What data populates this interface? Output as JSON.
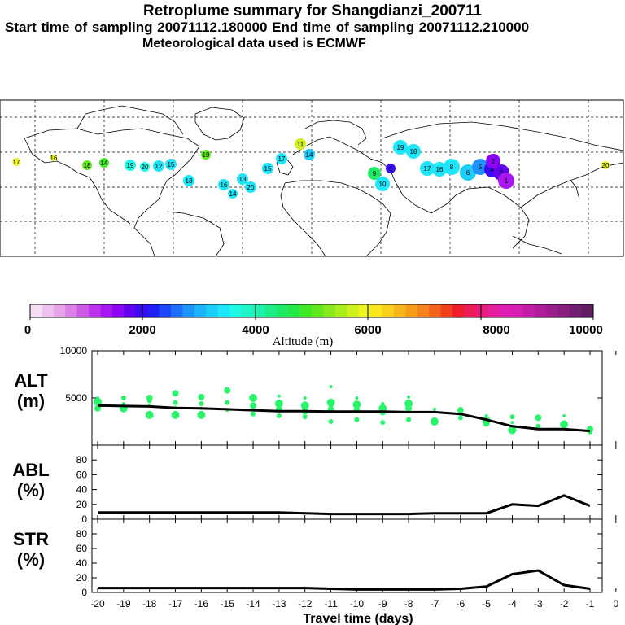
{
  "header": {
    "title": "Retroplume summary for Shangdianzi_200711",
    "sampling": "Start time of sampling 20071112.180000     End time of sampling 20071112.210000",
    "met": "Meteorological data used is ECMWF"
  },
  "colorbar": {
    "label": "Altitude (m)",
    "ticks": [
      "0",
      "2000",
      "4000",
      "6000",
      "8000",
      "10000"
    ],
    "colors": [
      "#f6def6",
      "#eec2f0",
      "#e6a4ea",
      "#dc82e6",
      "#cc5ce6",
      "#bb35ec",
      "#a817f0",
      "#8a05f2",
      "#6203f0",
      "#3a0af0",
      "#2020f6",
      "#1e46fa",
      "#1e6efa",
      "#1e94fa",
      "#1eb2fa",
      "#1ecefa",
      "#1ee6fa",
      "#1efae6",
      "#1ef6ca",
      "#1ef2ac",
      "#1eee8a",
      "#1eea66",
      "#24e846",
      "#40e826",
      "#62e81e",
      "#88ea1e",
      "#aaec1e",
      "#cef01e",
      "#eef41e",
      "#fae61e",
      "#fad01e",
      "#f8b61e",
      "#f89c1e",
      "#f6821e",
      "#f4641e",
      "#f2401e",
      "#f01e2c",
      "#ec1e58",
      "#e81e7c",
      "#e41e9e",
      "#de1eb0",
      "#d41eb4",
      "#c21ea8",
      "#ae1e9a",
      "#9a1e8c",
      "#861e7c",
      "#721e6e",
      "#5e1e60"
    ]
  },
  "map": {
    "labels": [
      {
        "t": "17",
        "c": "#eef41e"
      },
      {
        "t": "16",
        "c": "#eef41e"
      },
      {
        "t": "18",
        "c": "#62e81e"
      },
      {
        "t": "14",
        "c": "#40e826"
      },
      {
        "t": "19",
        "c": "#1efae6"
      },
      {
        "t": "20",
        "c": "#1efae6"
      },
      {
        "t": "12",
        "c": "#1ee6fa"
      },
      {
        "t": "15",
        "c": "#1ee6fa"
      },
      {
        "t": "13",
        "c": "#1ee6fa"
      },
      {
        "t": "16",
        "c": "#1ee6fa"
      },
      {
        "t": "14",
        "c": "#1ee6fa"
      },
      {
        "t": "20",
        "c": "#1ee6fa"
      },
      {
        "t": "13",
        "c": "#1ee6fa"
      },
      {
        "t": "15",
        "c": "#1ee6fa"
      },
      {
        "t": "17",
        "c": "#1ee6fa"
      },
      {
        "t": "11",
        "c": "#cef01e"
      },
      {
        "t": "14",
        "c": "#1ecefa"
      },
      {
        "t": "19",
        "c": "#1ee6fa"
      },
      {
        "t": "18",
        "c": "#1ee6fa"
      },
      {
        "t": "17",
        "c": "#1ee6fa"
      },
      {
        "t": "16",
        "c": "#1ee6fa"
      },
      {
        "t": "9",
        "c": "#1eea66"
      },
      {
        "t": "10",
        "c": "#1ee6fa"
      },
      {
        "t": "8",
        "c": "#1ee6fa"
      },
      {
        "t": "6",
        "c": "#1ecefa"
      },
      {
        "t": "5",
        "c": "#1e94fa"
      },
      {
        "t": "4",
        "c": "#3a0af0"
      },
      {
        "t": "3",
        "c": "#6203f0"
      },
      {
        "t": "2",
        "c": "#8a05f2"
      },
      {
        "t": "1",
        "c": "#a817f0"
      },
      {
        "t": "20",
        "c": "#eef41e"
      },
      {
        "t": "19",
        "c": "#62e81e"
      },
      {
        "t": "1",
        "c": "#3a0af0"
      }
    ]
  },
  "chart_data": [
    {
      "type": "scatter",
      "panel": "ALT",
      "ylabel": "ALT\n(m)",
      "ylabel_line1": "ALT",
      "ylabel_line2": "(m)",
      "ylim": [
        0,
        10000
      ],
      "yticks": [
        "5000",
        "10000"
      ],
      "series": [
        {
          "name": "mean",
          "x": [
            -20,
            -19,
            -18,
            -17,
            -16,
            -15,
            -14,
            -13,
            -12,
            -11,
            -10,
            -9,
            -8,
            -7,
            -6,
            -5,
            -4,
            -3,
            -2,
            -1
          ],
          "values": [
            4200,
            4150,
            4100,
            3950,
            3900,
            3800,
            3700,
            3600,
            3600,
            3550,
            3550,
            3550,
            3500,
            3500,
            3300,
            2700,
            2000,
            1700,
            1700,
            1500
          ]
        },
        {
          "name": "particles",
          "x": [
            -20,
            -20,
            -20,
            -19,
            -19,
            -19,
            -18,
            -18,
            -18,
            -18,
            -17,
            -17,
            -17,
            -17,
            -16,
            -16,
            -16,
            -16,
            -15,
            -15,
            -15,
            -14,
            -14,
            -14,
            -13,
            -13,
            -13,
            -13,
            -12,
            -12,
            -12,
            -12,
            -11,
            -11,
            -11,
            -11,
            -10,
            -10,
            -10,
            -10,
            -9,
            -9,
            -9,
            -9,
            -8,
            -8,
            -8,
            -8,
            -7,
            -7,
            -6,
            -6,
            -5,
            -5,
            -5,
            -4,
            -4,
            -4,
            -3,
            -3,
            -2,
            -2,
            -1,
            -1
          ],
          "values": [
            5000,
            4600,
            3900,
            5000,
            4400,
            3900,
            5000,
            4700,
            4200,
            3200,
            5500,
            4500,
            4000,
            3200,
            5100,
            4400,
            3900,
            3200,
            5800,
            4500,
            3700,
            5000,
            4200,
            3300,
            5200,
            4400,
            3800,
            3100,
            5000,
            4200,
            3600,
            3000,
            6200,
            4500,
            3800,
            2500,
            5000,
            4300,
            3700,
            2700,
            4400,
            3900,
            3500,
            2400,
            5100,
            4400,
            3900,
            2700,
            3800,
            2500,
            3700,
            2900,
            3100,
            2600,
            2300,
            3000,
            2400,
            1600,
            2900,
            2000,
            3100,
            2200,
            1700,
            1400
          ]
        }
      ]
    },
    {
      "type": "line",
      "panel": "ABL",
      "ylabel_line1": "ABL",
      "ylabel_line2": "(%)",
      "ylim": [
        0,
        100
      ],
      "yticks": [
        "0",
        "20",
        "40",
        "60",
        "80"
      ],
      "x": [
        -20,
        -19,
        -18,
        -17,
        -16,
        -15,
        -14,
        -13,
        -12,
        -11,
        -10,
        -9,
        -8,
        -7,
        -6,
        -5,
        -4,
        -3,
        -2,
        -1
      ],
      "values": [
        9,
        9,
        9,
        9,
        9,
        9,
        9,
        9,
        8,
        7,
        7,
        7,
        7,
        8,
        8,
        8,
        20,
        18,
        32,
        18
      ]
    },
    {
      "type": "line",
      "panel": "STR",
      "ylabel_line1": "STR",
      "ylabel_line2": "(%)",
      "ylim": [
        0,
        100
      ],
      "yticks": [
        "0",
        "20",
        "40",
        "60",
        "80"
      ],
      "x": [
        -20,
        -19,
        -18,
        -17,
        -16,
        -15,
        -14,
        -13,
        -12,
        -11,
        -10,
        -9,
        -8,
        -7,
        -6,
        -5,
        -4,
        -3,
        -2,
        -1
      ],
      "values": [
        6,
        6,
        6,
        6,
        6,
        6,
        6,
        6,
        6,
        5,
        4,
        4,
        4,
        4,
        5,
        8,
        25,
        30,
        10,
        5
      ],
      "xlabel": "Travel time (days)",
      "xticks": [
        "-20",
        "-19",
        "-18",
        "-17",
        "-16",
        "-15",
        "-14",
        "-13",
        "-12",
        "-11",
        "-10",
        "-9",
        "-8",
        "-7",
        "-6",
        "-5",
        "-4",
        "-3",
        "-2",
        "-1",
        "0"
      ]
    }
  ]
}
